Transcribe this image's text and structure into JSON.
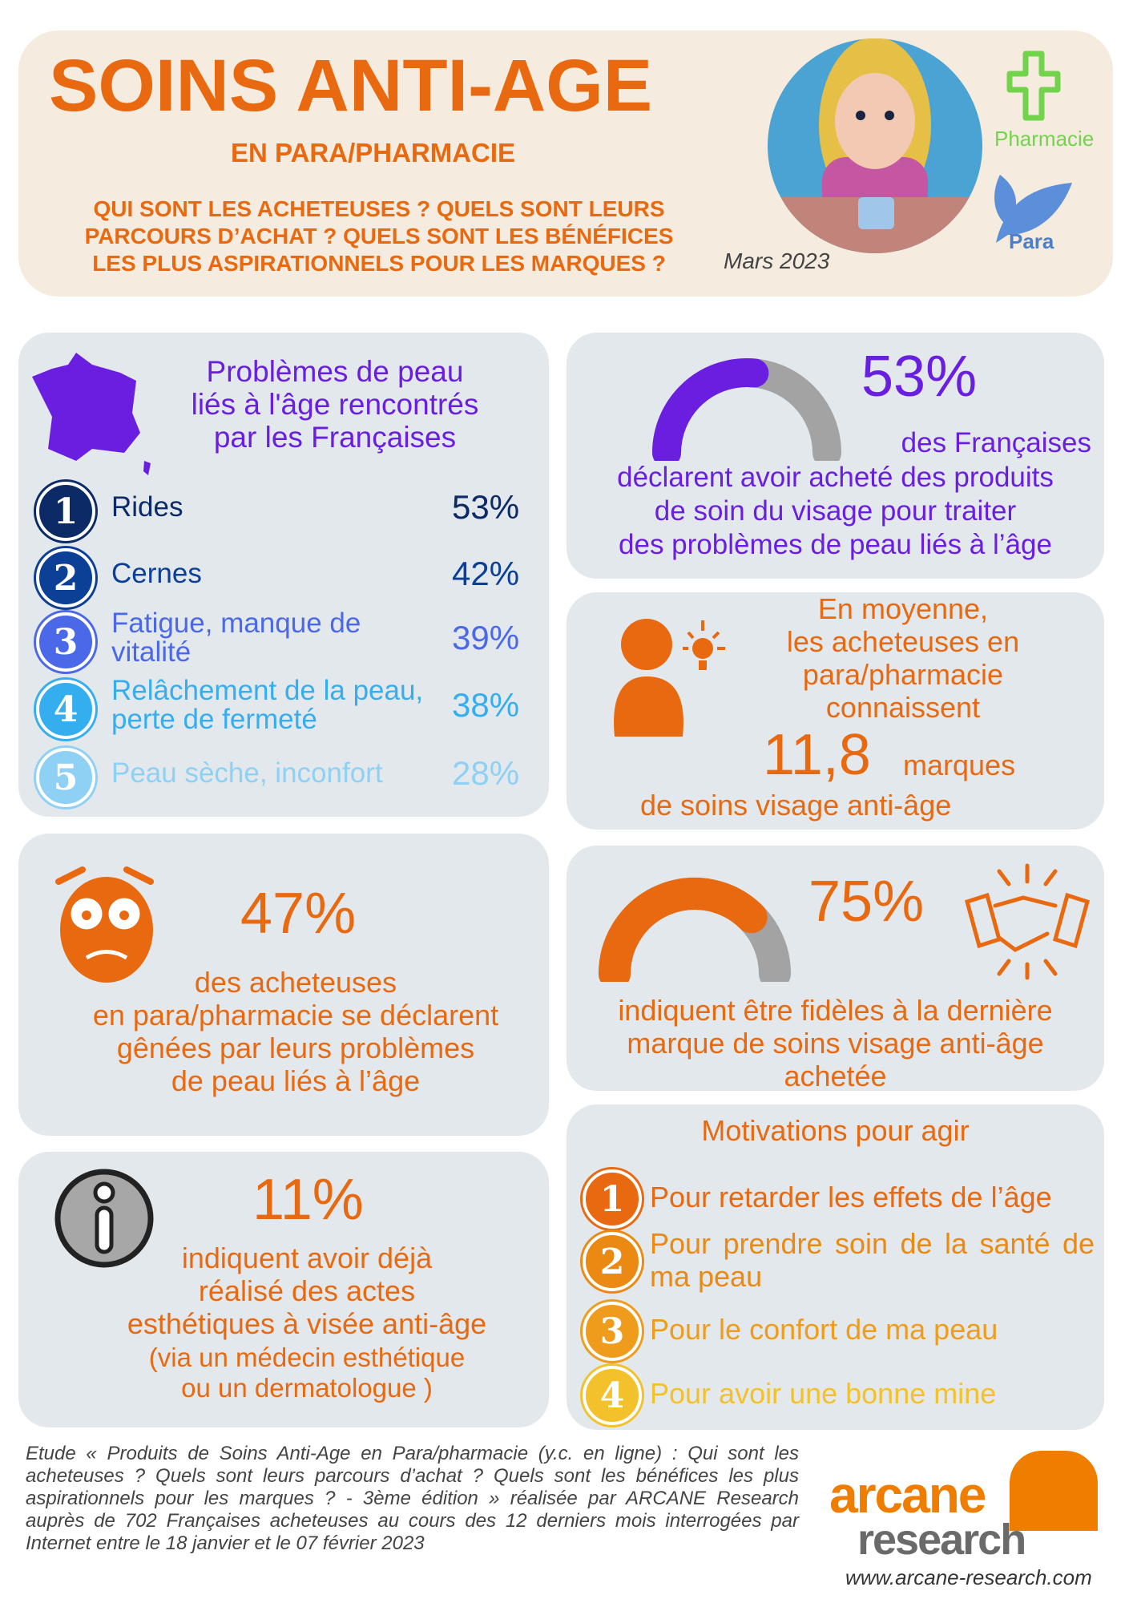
{
  "header": {
    "title": "SOINS ANTI-AGE",
    "subtitle": "EN PARA/PHARMACIE",
    "questions": [
      "QUI SONT LES ACHETEUSES ? QUELS SONT LEURS",
      "PARCOURS D’ACHAT ?  QUELS SONT LES BÉNÉFICES",
      "LES PLUS ASPIRATIONNELS POUR LES MARQUES ?"
    ],
    "date": "Mars 2023",
    "pharmacie_label": "Pharmacie",
    "para_label": "Para"
  },
  "problems": {
    "title": [
      "Problèmes de peau",
      "liés à l'âge rencontrés",
      "par les Françaises"
    ],
    "items": [
      {
        "rank": "1",
        "label": "Rides",
        "value": "53%",
        "color": "#0b2a66"
      },
      {
        "rank": "2",
        "label": "Cernes",
        "value": "42%",
        "color": "#0c3f96"
      },
      {
        "rank": "3",
        "label": "Fatigue, manque de vitalité",
        "value": "39%",
        "color": "#4a68e8"
      },
      {
        "rank": "4",
        "label": "Relâchement de la peau, perte de fermeté",
        "value": "38%",
        "color": "#35aef0"
      },
      {
        "rank": "5",
        "label": "Peau sèche, inconfort",
        "value": "28%",
        "color": "#8fd0f5"
      }
    ]
  },
  "stat53": {
    "value": "53%",
    "gauge_fraction": 0.53,
    "text": [
      "des Françaises",
      "déclarent avoir acheté des produits",
      "de soin du visage pour traiter",
      "des problèmes de peau liés à l’âge"
    ]
  },
  "brands": {
    "lines": [
      "En moyenne,",
      "les acheteuses en",
      "para/pharmacie",
      "connaissent"
    ],
    "value": "11,8",
    "unit": "marques",
    "tail": "de soins visage anti-âge"
  },
  "stat47": {
    "value": "47%",
    "text": [
      "des acheteuses",
      "en para/pharmacie se déclarent",
      "gênées par leurs problèmes",
      "de peau liés à l’âge"
    ]
  },
  "stat75": {
    "value": "75%",
    "gauge_fraction": 0.75,
    "text": [
      "indiquent être fidèles à la dernière",
      "marque de soins visage anti-âge",
      "achetée"
    ]
  },
  "stat11": {
    "value": "11%",
    "text": [
      "indiquent avoir déjà",
      "réalisé des actes",
      "esthétiques à visée anti-âge"
    ],
    "note": [
      "(via un médecin esthétique",
      "ou un dermatologue )"
    ]
  },
  "motivations": {
    "title": "Motivations pour agir",
    "items": [
      {
        "rank": "1",
        "label": "Pour retarder les effets de l’âge",
        "color": "#e8690f"
      },
      {
        "rank": "2",
        "label": "Pour prendre soin de la santé de ma peau",
        "color": "#eb8a12"
      },
      {
        "rank": "3",
        "label": "Pour le confort de ma peau",
        "color": "#ef9c1c"
      },
      {
        "rank": "4",
        "label": "Pour avoir une bonne mine",
        "color": "#f3c12c"
      }
    ]
  },
  "footer": {
    "text": "Etude « Produits de Soins Anti-Age en Para/pharmacie (y.c. en ligne) : Qui sont les acheteuses ? Quels sont leurs parcours d’achat ? Quels sont les bénéfices les plus aspirationnels pour les marques ? - 3ème édition » réalisée par ARCANE Research auprès de 702 Françaises acheteuses au cours des 12 derniers mois interrogées par Internet entre le 18 janvier et le 07 février 2023",
    "logo_top": "arcane",
    "logo_bottom": "research",
    "url": "www.arcane-research.com"
  },
  "colors": {
    "orange": "#e8690f",
    "purple": "#6a1fe0",
    "card": "#e3e8ec",
    "header": "#f5ebdf",
    "gauge_track": "#a3a3a3"
  }
}
